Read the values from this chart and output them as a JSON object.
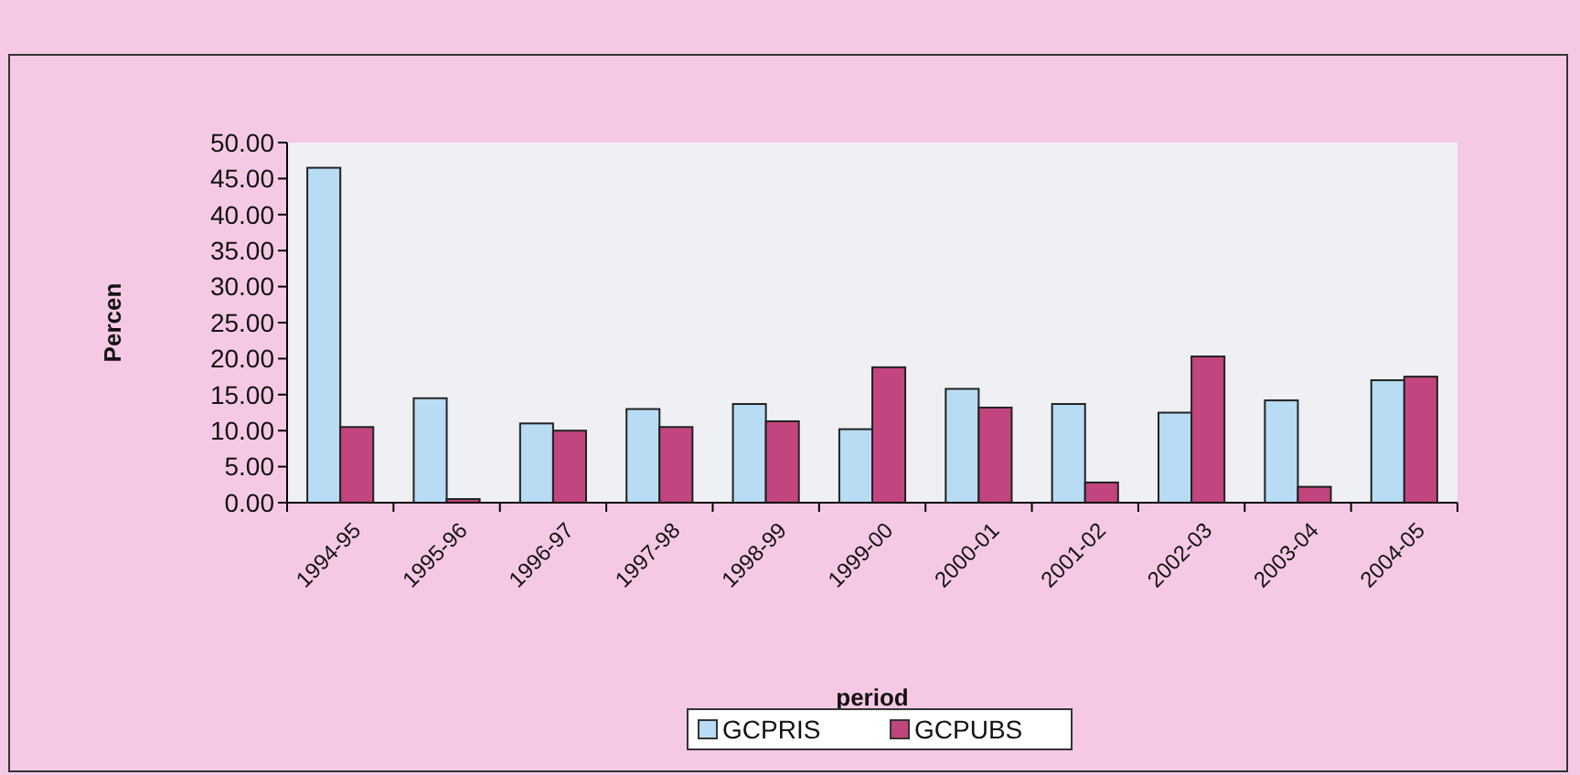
{
  "chart_data": {
    "type": "bar",
    "xlabel": "period",
    "ylabel": "Percen",
    "categories": [
      "1994-95",
      "1995-96",
      "1996-97",
      "1997-98",
      "1998-99",
      "1999-00",
      "2000-01",
      "2001-02",
      "2002-03",
      "2003-04",
      "2004-05"
    ],
    "series": [
      {
        "name": "GCPRIS",
        "color": "#b8dcf4",
        "values": [
          46.5,
          14.5,
          11,
          13,
          13.7,
          10.2,
          15.8,
          13.7,
          12.5,
          14.2,
          17
        ]
      },
      {
        "name": "GCPUBS",
        "color": "#c2457f",
        "values": [
          10.5,
          0.5,
          10,
          10.5,
          11.3,
          18.8,
          13.2,
          2.8,
          20.3,
          2.2,
          17.5
        ]
      }
    ],
    "ylim": [
      0,
      50
    ],
    "yticks": [
      {
        "value": 0,
        "label": "0.00"
      },
      {
        "value": 5,
        "label": "5.00"
      },
      {
        "value": 10,
        "label": "10.00"
      },
      {
        "value": 15,
        "label": "15.00"
      },
      {
        "value": 20,
        "label": "20.00"
      },
      {
        "value": 25,
        "label": "25.00"
      },
      {
        "value": 30,
        "label": "30.00"
      },
      {
        "value": 35,
        "label": "35.00"
      },
      {
        "value": 40,
        "label": "40.00"
      },
      {
        "value": 45,
        "label": "45.00"
      },
      {
        "value": 50,
        "label": "50.00"
      }
    ],
    "grid": false,
    "legend": "bottom"
  }
}
